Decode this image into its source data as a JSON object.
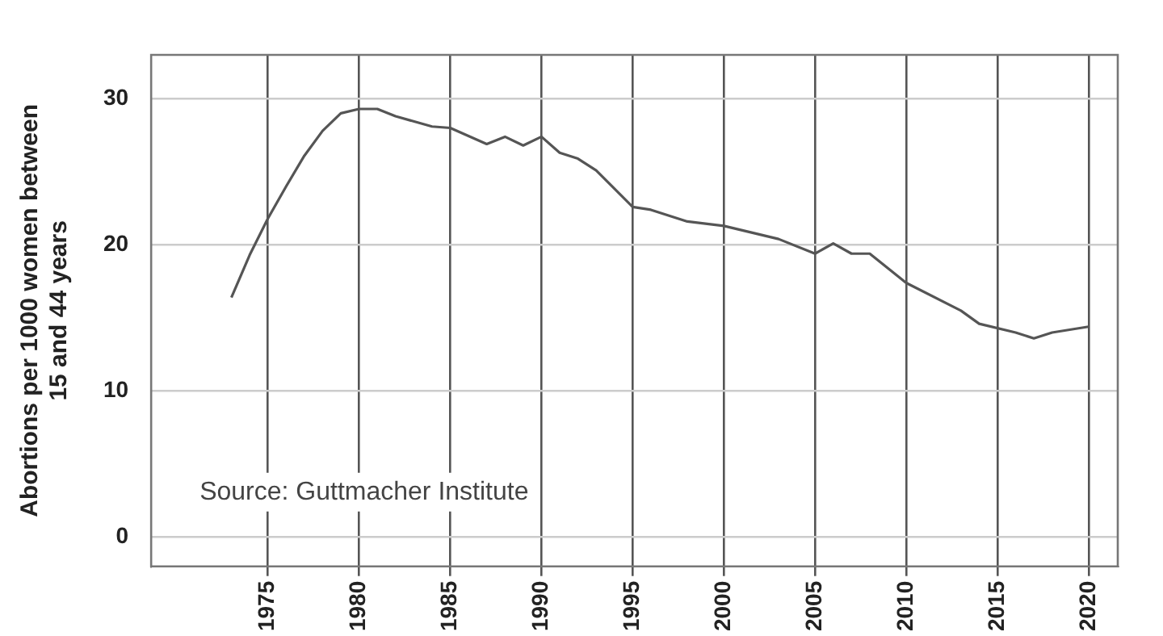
{
  "chart_data": {
    "type": "line",
    "ylabel": "Abortions per 1000 women between\n15 and 44 years",
    "annotations": [
      "Source: Guttmacher Institute"
    ],
    "x": [
      1973,
      1974,
      1975,
      1976,
      1977,
      1978,
      1979,
      1980,
      1981,
      1982,
      1984,
      1985,
      1987,
      1988,
      1989,
      1990,
      1991,
      1992,
      1993,
      1995,
      1996,
      1998,
      2000,
      2003,
      2005,
      2006,
      2007,
      2008,
      2010,
      2013,
      2014,
      2016,
      2017,
      2018,
      2020
    ],
    "series": [
      {
        "color": "#555555",
        "values": [
          16.4,
          19.3,
          21.8,
          24.0,
          26.1,
          27.8,
          29.0,
          29.3,
          29.3,
          28.8,
          28.1,
          28.0,
          26.9,
          27.4,
          26.8,
          27.4,
          26.3,
          25.9,
          25.1,
          22.6,
          22.4,
          21.6,
          21.3,
          20.4,
          19.4,
          20.1,
          19.4,
          19.4,
          17.4,
          15.5,
          14.6,
          14.0,
          13.6,
          14.0,
          14.4
        ]
      }
    ],
    "xlim": [
      1968.6,
      2021.6
    ],
    "xticks": [
      1975,
      1980,
      1985,
      1990,
      1995,
      2000,
      2005,
      2010,
      2015,
      2020
    ],
    "ylim": [
      -2,
      33
    ],
    "yticks": [
      0,
      10,
      20,
      30
    ],
    "grid": true,
    "legend": false,
    "marker": "none",
    "line_style": "solid"
  }
}
